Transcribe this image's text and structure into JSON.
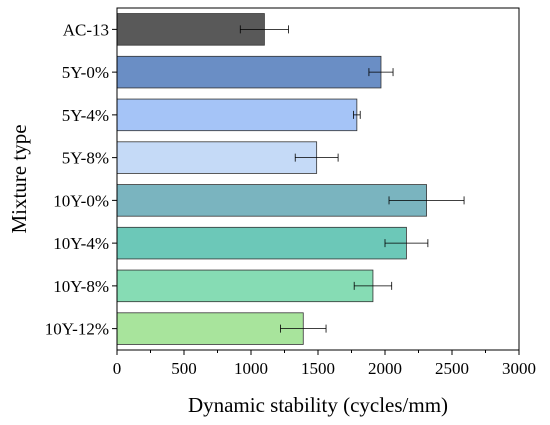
{
  "chart_data": {
    "type": "bar",
    "orientation": "horizontal",
    "xlabel": "Dynamic stability (cycles/mm)",
    "ylabel": "Mixture type",
    "xlim": [
      0,
      3000
    ],
    "xticks": [
      0,
      500,
      1000,
      1500,
      2000,
      2500,
      3000
    ],
    "grid": false,
    "categories": [
      "AC-13",
      "5Y-0%",
      "5Y-4%",
      "5Y-8%",
      "10Y-0%",
      "10Y-4%",
      "10Y-8%",
      "10Y-12%"
    ],
    "values": [
      1100,
      1970,
      1790,
      1490,
      2310,
      2160,
      1910,
      1390
    ],
    "errors": [
      180,
      90,
      25,
      160,
      280,
      160,
      140,
      170
    ],
    "colors": [
      "#595959",
      "#6a8ec5",
      "#a5c4f7",
      "#c5daf7",
      "#7ab4bf",
      "#6cc8b8",
      "#86dcb4",
      "#a8e49c"
    ]
  }
}
